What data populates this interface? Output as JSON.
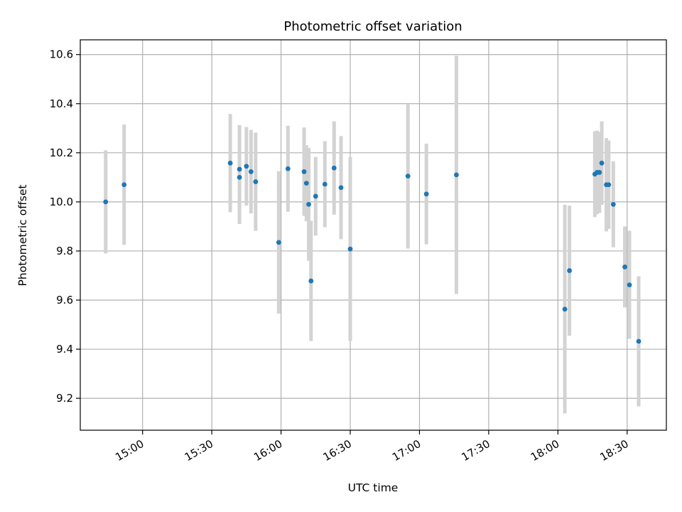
{
  "chart_data": {
    "type": "scatter",
    "title": "Photometric offset variation",
    "xlabel": "UTC time",
    "ylabel": "Photometric offset",
    "xlim": [
      "14:33",
      "18:47"
    ],
    "ylim": [
      9.07,
      10.66
    ],
    "x_ticks": [
      "15:00",
      "15:30",
      "16:00",
      "16:30",
      "17:00",
      "17:30",
      "18:00",
      "18:30"
    ],
    "y_ticks": [
      "9.2",
      "9.4",
      "9.6",
      "9.8",
      "10.0",
      "10.2",
      "10.4",
      "10.6"
    ],
    "grid": true,
    "legend": "none",
    "colors": {
      "points": "#1f77b4",
      "errorbars": "#d3d3d3",
      "grid": "#b0b0b0",
      "axes": "#000000"
    },
    "series": [
      {
        "points": [
          {
            "x": "14:44",
            "y": 10.0,
            "err": 0.21
          },
          {
            "x": "14:52",
            "y": 10.07,
            "err": 0.245
          },
          {
            "x": "15:38",
            "y": 10.158,
            "err": 0.2
          },
          {
            "x": "15:42",
            "y": 10.1,
            "err": 0.19
          },
          {
            "x": "15:42",
            "y": 10.133,
            "err": 0.18
          },
          {
            "x": "15:45",
            "y": 10.145,
            "err": 0.16
          },
          {
            "x": "15:47",
            "y": 10.123,
            "err": 0.17
          },
          {
            "x": "15:49",
            "y": 10.082,
            "err": 0.2
          },
          {
            "x": "15:59",
            "y": 9.835,
            "err": 0.29
          },
          {
            "x": "16:03",
            "y": 10.135,
            "err": 0.175
          },
          {
            "x": "16:10",
            "y": 10.123,
            "err": 0.18
          },
          {
            "x": "16:11",
            "y": 10.076,
            "err": 0.155
          },
          {
            "x": "16:12",
            "y": 9.99,
            "err": 0.23
          },
          {
            "x": "16:13",
            "y": 9.678,
            "err": 0.245
          },
          {
            "x": "16:15",
            "y": 10.023,
            "err": 0.16
          },
          {
            "x": "16:19",
            "y": 10.072,
            "err": 0.175
          },
          {
            "x": "16:23",
            "y": 10.138,
            "err": 0.19
          },
          {
            "x": "16:26",
            "y": 10.058,
            "err": 0.21
          },
          {
            "x": "16:30",
            "y": 9.808,
            "err": 0.375
          },
          {
            "x": "16:55",
            "y": 10.105,
            "err": 0.295
          },
          {
            "x": "17:03",
            "y": 10.032,
            "err": 0.205
          },
          {
            "x": "17:16",
            "y": 10.11,
            "err": 0.485
          },
          {
            "x": "18:03",
            "y": 9.563,
            "err": 0.425
          },
          {
            "x": "18:05",
            "y": 9.72,
            "err": 0.265
          },
          {
            "x": "18:16",
            "y": 10.113,
            "err": 0.175
          },
          {
            "x": "18:17",
            "y": 10.12,
            "err": 0.17
          },
          {
            "x": "18:18",
            "y": 10.12,
            "err": 0.165
          },
          {
            "x": "18:19",
            "y": 10.158,
            "err": 0.17
          },
          {
            "x": "18:21",
            "y": 10.07,
            "err": 0.19
          },
          {
            "x": "18:22",
            "y": 10.07,
            "err": 0.18
          },
          {
            "x": "18:24",
            "y": 9.99,
            "err": 0.175
          },
          {
            "x": "18:29",
            "y": 9.735,
            "err": 0.165
          },
          {
            "x": "18:31",
            "y": 9.662,
            "err": 0.22
          },
          {
            "x": "18:35",
            "y": 9.432,
            "err": 0.265
          }
        ]
      }
    ]
  }
}
